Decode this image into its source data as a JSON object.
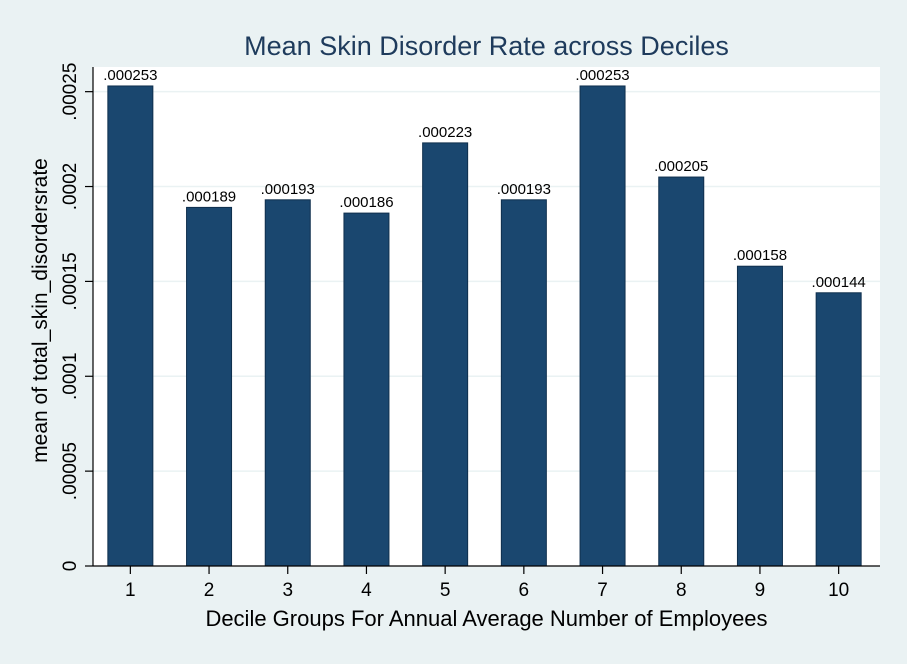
{
  "chart_data": {
    "type": "bar",
    "title": "Mean Skin Disorder Rate across Deciles",
    "xlabel": "Decile Groups For Annual Average Number of Employees",
    "ylabel": "mean of total_skin_disordersrate",
    "categories": [
      "1",
      "2",
      "3",
      "4",
      "5",
      "6",
      "7",
      "8",
      "9",
      "10"
    ],
    "values": [
      0.000253,
      0.000189,
      0.000193,
      0.000186,
      0.000223,
      0.000193,
      0.000253,
      0.000205,
      0.000158,
      0.000144
    ],
    "value_labels": [
      ".000253",
      ".000189",
      ".000193",
      ".000186",
      ".000223",
      ".000193",
      ".000253",
      ".000205",
      ".000158",
      ".000144"
    ],
    "ylim": [
      0,
      0.000263
    ],
    "yticks": [
      0,
      5e-05,
      0.0001,
      0.00015,
      0.0002,
      0.00025
    ],
    "ytick_labels": [
      "0",
      ".00005",
      ".0001",
      ".00015",
      ".0002",
      ".00025"
    ],
    "grid": true,
    "legend": "none",
    "colors": {
      "background": "#eaf2f3",
      "plot_background": "#ffffff",
      "bar": "#1a476f",
      "title": "#1e3b5c",
      "text": "#000000",
      "grid": "#eaf2f3"
    }
  }
}
